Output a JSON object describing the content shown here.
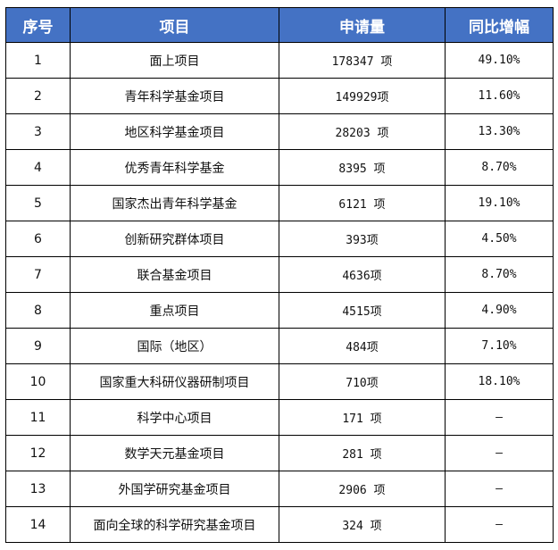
{
  "table": {
    "headers": [
      "序号",
      "项目",
      "申请量",
      "同比增幅"
    ],
    "rows": [
      {
        "no": "1",
        "project": "面上项目",
        "count": "178347 项",
        "growth": "49.10%"
      },
      {
        "no": "2",
        "project": "青年科学基金项目",
        "count": "149929项",
        "growth": "11.60%"
      },
      {
        "no": "3",
        "project": "地区科学基金项目",
        "count": "28203 项",
        "growth": "13.30%"
      },
      {
        "no": "4",
        "project": "优秀青年科学基金",
        "count": "8395 项",
        "growth": "8.70%"
      },
      {
        "no": "5",
        "project": "国家杰出青年科学基金",
        "count": "6121 项",
        "growth": "19.10%"
      },
      {
        "no": "6",
        "project": "创新研究群体项目",
        "count": "393项",
        "growth": "4.50%"
      },
      {
        "no": "7",
        "project": "联合基金项目",
        "count": "4636项",
        "growth": "8.70%"
      },
      {
        "no": "8",
        "project": "重点项目",
        "count": "4515项",
        "growth": "4.90%"
      },
      {
        "no": "9",
        "project": "国际（地区）",
        "count": "484项",
        "growth": "7.10%"
      },
      {
        "no": "10",
        "project": "国家重大科研仪器研制项目",
        "count": "710项",
        "growth": "18.10%"
      },
      {
        "no": "11",
        "project": "科学中心项目",
        "count": "171 项",
        "growth": "—"
      },
      {
        "no": "12",
        "project": "数学天元基金项目",
        "count": "281 项",
        "growth": "—"
      },
      {
        "no": "13",
        "project": "外国学研究基金项目",
        "count": "2906 项",
        "growth": "—"
      },
      {
        "no": "14",
        "project": "面向全球的科学研究基金项目",
        "count": "324 项",
        "growth": "—"
      }
    ]
  }
}
